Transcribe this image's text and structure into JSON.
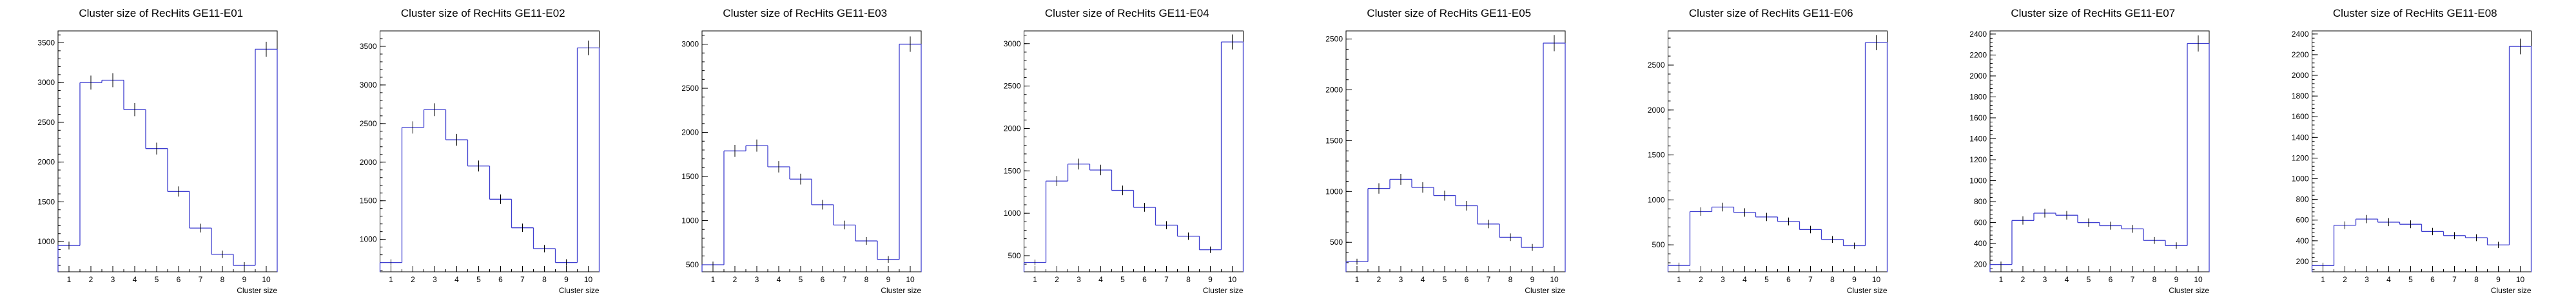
{
  "colors": {
    "hist": "#3f3fd0",
    "axis": "#000000",
    "background": "#ffffff"
  },
  "chart_data": [
    {
      "type": "bar",
      "title": "Cluster size of RecHits GE11-E01",
      "xlabel": "Cluster size",
      "ylabel": "",
      "categories": [
        "1",
        "2",
        "3",
        "4",
        "5",
        "6",
        "7",
        "8",
        "9",
        "10"
      ],
      "values": [
        950,
        3000,
        3030,
        2660,
        2170,
        1630,
        1170,
        840,
        700,
        3420
      ],
      "xlim": [
        0.5,
        10.5
      ],
      "ylim": [
        620,
        3650
      ],
      "yticks": [
        1000,
        1500,
        2000,
        2500,
        3000,
        3500
      ]
    },
    {
      "type": "bar",
      "title": "Cluster size of RecHits GE11-E02",
      "xlabel": "Cluster size",
      "ylabel": "",
      "categories": [
        "1",
        "2",
        "3",
        "4",
        "5",
        "6",
        "7",
        "8",
        "9",
        "10"
      ],
      "values": [
        700,
        2450,
        2680,
        2290,
        1950,
        1520,
        1150,
        880,
        700,
        3480
      ],
      "xlim": [
        0.5,
        10.5
      ],
      "ylim": [
        580,
        3700
      ],
      "yticks": [
        1000,
        1500,
        2000,
        2500,
        3000,
        3500
      ]
    },
    {
      "type": "bar",
      "title": "Cluster size of RecHits GE11-E03",
      "xlabel": "Cluster size",
      "ylabel": "",
      "categories": [
        "1",
        "2",
        "3",
        "4",
        "5",
        "6",
        "7",
        "8",
        "9",
        "10"
      ],
      "values": [
        500,
        1790,
        1850,
        1610,
        1470,
        1180,
        950,
        770,
        560,
        3000
      ],
      "xlim": [
        0.5,
        10.5
      ],
      "ylim": [
        420,
        3150
      ],
      "yticks": [
        500,
        1000,
        1500,
        2000,
        2500,
        3000
      ]
    },
    {
      "type": "bar",
      "title": "Cluster size of RecHits GE11-E04",
      "xlabel": "Cluster size",
      "ylabel": "",
      "categories": [
        "1",
        "2",
        "3",
        "4",
        "5",
        "6",
        "7",
        "8",
        "9",
        "10"
      ],
      "values": [
        420,
        1380,
        1580,
        1510,
        1270,
        1070,
        860,
        730,
        570,
        3020
      ],
      "xlim": [
        0.5,
        10.5
      ],
      "ylim": [
        310,
        3150
      ],
      "yticks": [
        500,
        1000,
        1500,
        2000,
        2500,
        3000
      ]
    },
    {
      "type": "bar",
      "title": "Cluster size of RecHits GE11-E05",
      "xlabel": "Cluster size",
      "ylabel": "",
      "categories": [
        "1",
        "2",
        "3",
        "4",
        "5",
        "6",
        "7",
        "8",
        "9",
        "10"
      ],
      "values": [
        310,
        1030,
        1120,
        1040,
        960,
        860,
        680,
        550,
        450,
        2460
      ],
      "xlim": [
        0.5,
        10.5
      ],
      "ylim": [
        210,
        2580
      ],
      "yticks": [
        500,
        1000,
        1500,
        2000,
        2500
      ]
    },
    {
      "type": "bar",
      "title": "Cluster size of RecHits GE11-E06",
      "xlabel": "Cluster size",
      "ylabel": "",
      "categories": [
        "1",
        "2",
        "3",
        "4",
        "5",
        "6",
        "7",
        "8",
        "9",
        "10"
      ],
      "values": [
        270,
        870,
        920,
        860,
        810,
        760,
        670,
        560,
        490,
        2750
      ],
      "xlim": [
        0.5,
        10.5
      ],
      "ylim": [
        200,
        2880
      ],
      "yticks": [
        500,
        1000,
        1500,
        2000,
        2500
      ]
    },
    {
      "type": "bar",
      "title": "Cluster size of RecHits GE11-E07",
      "xlabel": "Cluster size",
      "ylabel": "",
      "categories": [
        "1",
        "2",
        "3",
        "4",
        "5",
        "6",
        "7",
        "8",
        "9",
        "10"
      ],
      "values": [
        200,
        620,
        690,
        670,
        600,
        570,
        540,
        430,
        380,
        2310
      ],
      "xlim": [
        0.5,
        10.5
      ],
      "ylim": [
        130,
        2430
      ],
      "yticks": [
        200,
        400,
        600,
        800,
        1000,
        1200,
        1400,
        1600,
        1800,
        2000,
        2200,
        2400
      ]
    },
    {
      "type": "bar",
      "title": "Cluster size of RecHits GE11-E08",
      "xlabel": "Cluster size",
      "ylabel": "",
      "categories": [
        "1",
        "2",
        "3",
        "4",
        "5",
        "6",
        "7",
        "8",
        "9",
        "10"
      ],
      "values": [
        160,
        550,
        610,
        580,
        560,
        490,
        450,
        430,
        360,
        2280
      ],
      "xlim": [
        0.5,
        10.5
      ],
      "ylim": [
        100,
        2430
      ],
      "yticks": [
        200,
        400,
        600,
        800,
        1000,
        1200,
        1400,
        1600,
        1800,
        2000,
        2200,
        2400
      ]
    }
  ]
}
